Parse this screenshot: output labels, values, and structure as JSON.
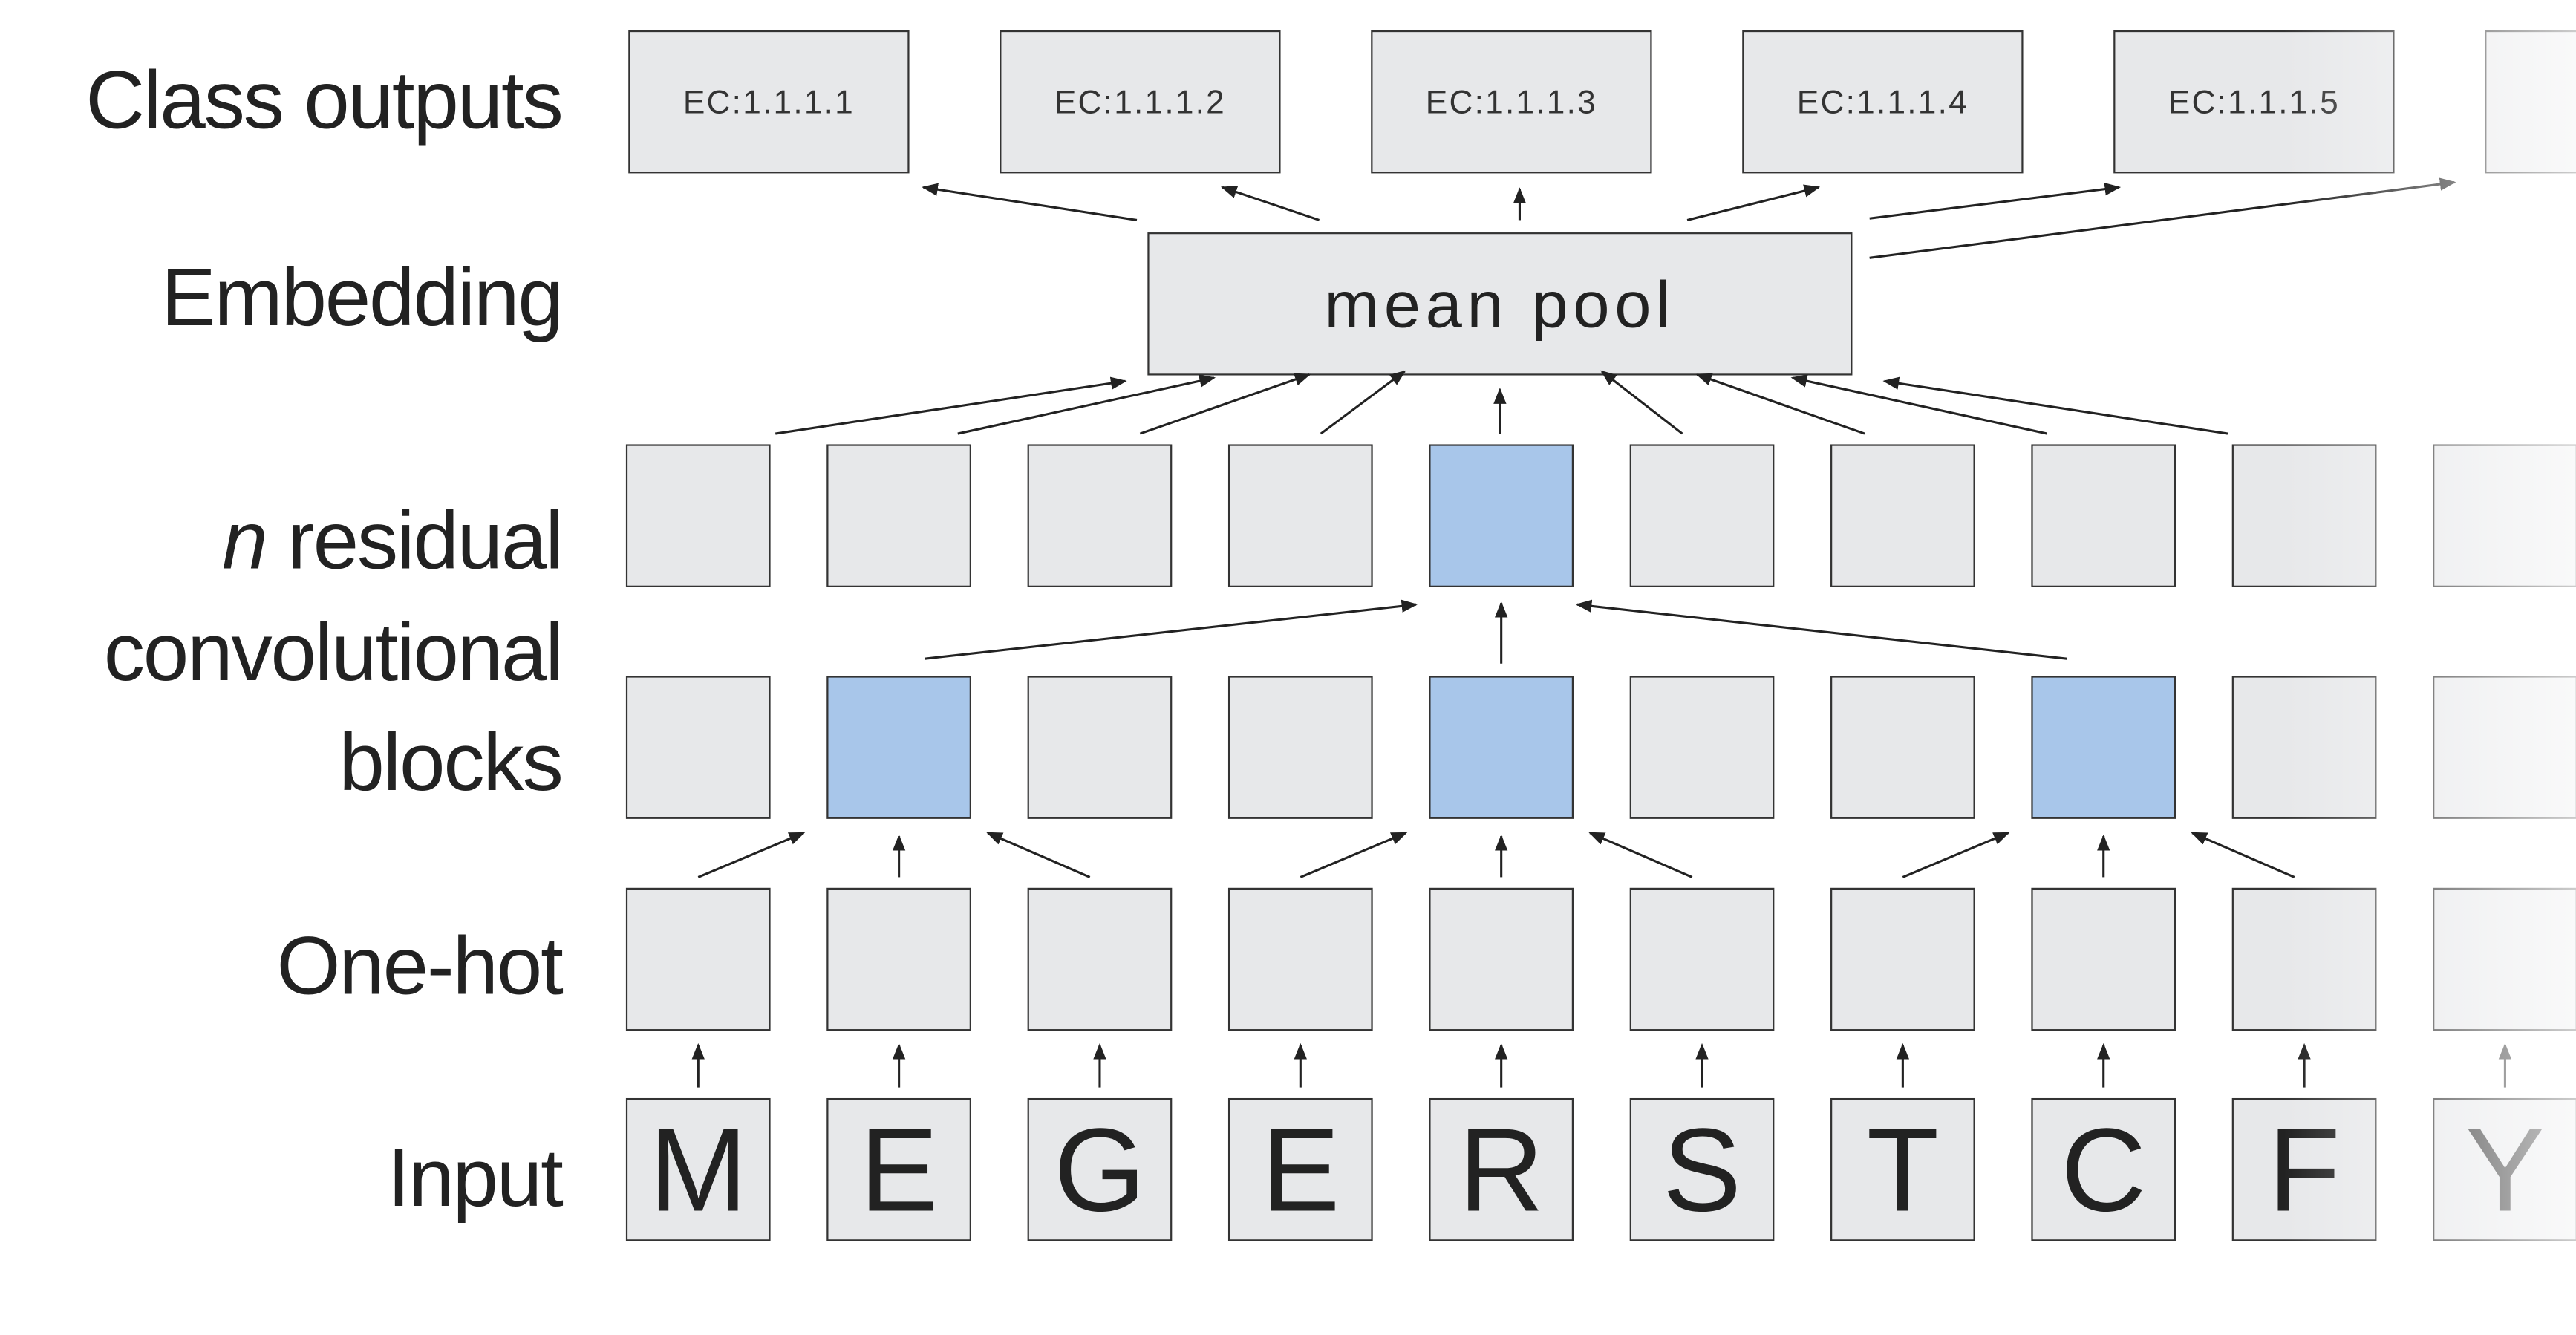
{
  "row_labels": {
    "class_outputs": "Class outputs",
    "embedding": "Embedding",
    "conv_italic": "n",
    "conv_line1": "residual",
    "conv_line2": "convolutional",
    "conv_line3": "blocks",
    "one_hot": "One-hot",
    "input": "Input"
  },
  "class_outputs": [
    "EC:1.1.1.1",
    "EC:1.1.1.2",
    "EC:1.1.1.3",
    "EC:1.1.1.4",
    "EC:1.1.1.5",
    "..."
  ],
  "embedding": "mean pool",
  "input": [
    "M",
    "E",
    "G",
    "E",
    "R",
    "S",
    "T",
    "C",
    "F",
    "Y"
  ]
}
